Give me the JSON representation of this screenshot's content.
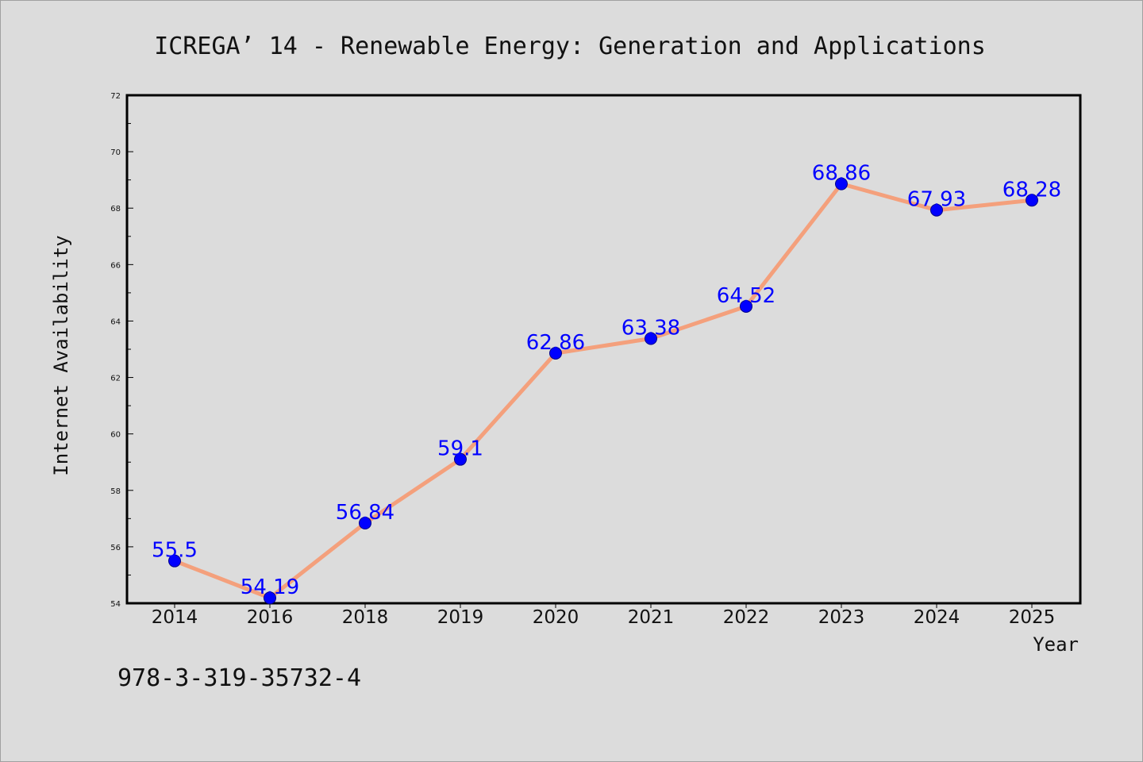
{
  "caption": "978-3-319-35732-4",
  "chart_data": {
    "type": "line",
    "title": "ICREGA’ 14 - Renewable Energy: Generation and Applications",
    "xlabel": "Year",
    "ylabel": "Internet Availability",
    "categories": [
      "2014",
      "2016",
      "2018",
      "2019",
      "2020",
      "2021",
      "2022",
      "2023",
      "2024",
      "2025"
    ],
    "series": [
      {
        "values": [
          55.5,
          54.19,
          56.84,
          59.1,
          62.86,
          63.38,
          64.52,
          68.86,
          67.93,
          68.28
        ]
      }
    ],
    "data_labels": [
      "55.5",
      "54.19",
      "56.84",
      "59.1",
      "62.86",
      "63.38",
      "64.52",
      "68.86",
      "67.93",
      "68.28"
    ],
    "ylim": [
      54,
      72
    ],
    "yticks": [
      "54",
      "56",
      "58",
      "60",
      "62",
      "64",
      "66",
      "68",
      "70",
      "72"
    ],
    "grid": false,
    "legend": "none",
    "colors": {
      "line": "#f4a07c",
      "marker": "#0000ff",
      "label": "#0000ff"
    }
  }
}
